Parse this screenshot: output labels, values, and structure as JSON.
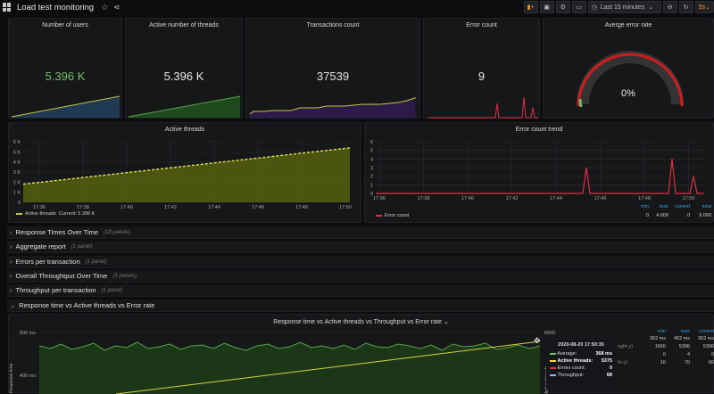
{
  "header": {
    "title": "Load test monitoring",
    "time_range": "Last 15 minutes",
    "refresh_interval": "5s"
  },
  "stats": [
    {
      "title": "Number of users",
      "value": "5.396 K",
      "color": "#73bf69"
    },
    {
      "title": "Active number of threads",
      "value": "5.396 K",
      "color": "#e8e8e8"
    },
    {
      "title": "Transactions count",
      "value": "37539",
      "color": "#e8e8e8"
    },
    {
      "title": "Error count",
      "value": "9",
      "color": "#e8e8e8"
    }
  ],
  "gauge": {
    "title": "Averge error rate",
    "value": "0%",
    "level": 0
  },
  "active_threads_panel": {
    "title": "Active threads",
    "y_ticks": [
      "6 K",
      "5 K",
      "4 K",
      "3 K",
      "2 K",
      "1 K",
      "0"
    ],
    "x_ticks": [
      "17:36",
      "17:38",
      "17:40",
      "17:42",
      "17:44",
      "17:46",
      "17:48",
      "17:50"
    ],
    "legend_name": "Active threads",
    "legend_current": "Current: 5.396 K",
    "chart_data": {
      "type": "area",
      "x": [
        "17:35",
        "17:51"
      ],
      "values": [
        1800,
        5396
      ],
      "ylim": [
        0,
        6000
      ]
    }
  },
  "error_trend_panel": {
    "title": "Error count trend",
    "y_ticks": [
      "6",
      "5",
      "4",
      "3",
      "2",
      "1",
      "0"
    ],
    "x_ticks": [
      "17:36",
      "17:38",
      "17:40",
      "17:42",
      "17:44",
      "17:46",
      "17:48",
      "17:50"
    ],
    "legend_headers": [
      "min",
      "max",
      "current",
      "total"
    ],
    "legend_name": "Error count",
    "legend_values": [
      "0",
      "4.000",
      "0",
      "9.000"
    ],
    "chart_data": {
      "type": "line",
      "spikes": [
        {
          "x": "17:45",
          "y": 3
        },
        {
          "x": "17:49",
          "y": 4
        },
        {
          "x": "17:50",
          "y": 2
        }
      ],
      "ylim": [
        0,
        6
      ]
    }
  },
  "rows": [
    {
      "label": "Response Times Over Time",
      "count": "(18 panels)"
    },
    {
      "label": "Aggregate report",
      "count": "(1 panel)"
    },
    {
      "label": "Errors per transaction",
      "count": "(1 panel)"
    },
    {
      "label": "Overall Throughtput Over Time",
      "count": "(5 panels)"
    },
    {
      "label": "Throughput per transaction",
      "count": "(1 panel)"
    },
    {
      "label": "Response time vs Active threads vs Error rate",
      "count": ""
    }
  ],
  "bottom_panel": {
    "title": "Response time vs Active threads vs Throughput vs Error rate",
    "y_ticks": [
      "500 ms",
      "400 ms"
    ],
    "y_axis_label": "Response time",
    "right_tick": "6000",
    "right_axis_label": "Active threads",
    "tooltip": {
      "time": "2020-08-20 17:50:35",
      "items": [
        {
          "name": "Average:",
          "value": "368 ms",
          "color": "#73bf69"
        },
        {
          "name": "Active threads:",
          "value": "5375",
          "color": "#fade2a"
        },
        {
          "name": "Errors count:",
          "value": "0",
          "color": "#e02f44"
        },
        {
          "name": "Throughput:",
          "value": "68",
          "color": "#8ab8ff"
        }
      ]
    },
    "stats_table": {
      "headers": [
        "min",
        "max",
        "current"
      ],
      "rows": [
        {
          "label": "",
          "values": [
            "362 ms",
            "462 ms",
            "362 ms"
          ]
        },
        {
          "label": "right-y)",
          "values": [
            "1666",
            "5396",
            "5396"
          ]
        },
        {
          "label": "",
          "values": [
            "0",
            "4",
            "0"
          ]
        },
        {
          "label": "ht-y)",
          "values": [
            "16",
            "70",
            "66"
          ]
        }
      ]
    }
  }
}
